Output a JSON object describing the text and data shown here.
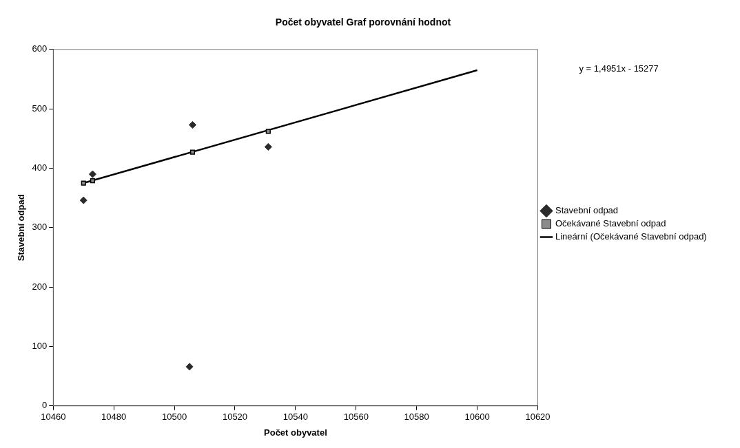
{
  "chart_data": {
    "type": "scatter",
    "title": "Počet obyvatel Graf porovnání hodnot",
    "xlabel": "Počet obyvatel",
    "ylabel": "Stavební odpad",
    "xlim": [
      10460,
      10620
    ],
    "xticks": [
      10460,
      10480,
      10500,
      10520,
      10540,
      10560,
      10580,
      10600,
      10620
    ],
    "ylim": [
      0,
      600
    ],
    "yticks": [
      0,
      100,
      200,
      300,
      400,
      500,
      600
    ],
    "grid": false,
    "legend": "right",
    "annotations": [
      "y = 1,4951x - 15277"
    ],
    "series": [
      {
        "name": "Stavební odpad",
        "marker": "diamond",
        "color": "#2b2b2b",
        "x": [
          10470,
          10473,
          10506,
          10531,
          10505
        ],
        "values": [
          346,
          390,
          473,
          436,
          66
        ]
      },
      {
        "name": "Očekávané Stavební odpad",
        "marker": "square",
        "color": "#8c8c8c",
        "x": [
          10470,
          10473,
          10506,
          10531
        ],
        "values": [
          375,
          379,
          427,
          462
        ]
      },
      {
        "name": "Lineární (Očekávané Stavební odpad)",
        "type": "line",
        "marker": "none",
        "line_style": "solid",
        "color": "#000000",
        "x": [
          10470,
          10600
        ],
        "values": [
          375,
          565
        ]
      }
    ]
  }
}
